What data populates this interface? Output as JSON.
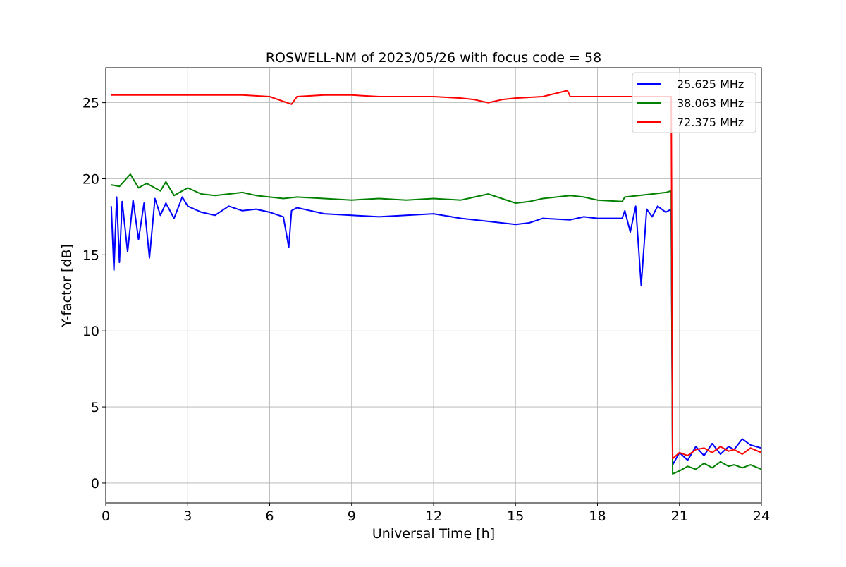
{
  "chart_data": {
    "type": "line",
    "title": "ROSWELL-NM of 2023/05/26 with focus code = 58",
    "xlabel": "Universal Time [h]",
    "ylabel": "Y-factor [dB]",
    "xlim": [
      0,
      24
    ],
    "ylim": [
      -1.3,
      27.3
    ],
    "xticks": [
      0,
      3,
      6,
      9,
      12,
      15,
      18,
      21,
      24
    ],
    "xtick_labels": [
      "0",
      "3",
      "6",
      "9",
      "12",
      "15",
      "18",
      "21",
      "24"
    ],
    "yticks": [
      0,
      5,
      10,
      15,
      20,
      25
    ],
    "ytick_labels": [
      "0",
      "5",
      "10",
      "15",
      "20",
      "25"
    ],
    "grid": true,
    "legend_position": "top-right",
    "series": [
      {
        "name": "25.625 MHz",
        "color": "#0000ff",
        "x": [
          0.2,
          0.3,
          0.4,
          0.5,
          0.6,
          0.8,
          1.0,
          1.2,
          1.4,
          1.6,
          1.8,
          2.0,
          2.2,
          2.5,
          2.8,
          3.0,
          3.5,
          4.0,
          4.5,
          5.0,
          5.5,
          6.0,
          6.5,
          6.7,
          6.8,
          7.0,
          7.5,
          8.0,
          9.0,
          10.0,
          11.0,
          12.0,
          13.0,
          14.0,
          15.0,
          15.5,
          16.0,
          17.0,
          17.5,
          18.0,
          18.9,
          19.0,
          19.2,
          19.4,
          19.6,
          19.8,
          20.0,
          20.2,
          20.5,
          20.7,
          20.75,
          21.0,
          21.3,
          21.6,
          21.9,
          22.2,
          22.5,
          22.8,
          23.0,
          23.3,
          23.6,
          24.0
        ],
        "values": [
          18.2,
          14.0,
          18.8,
          14.5,
          18.5,
          15.2,
          18.6,
          16.0,
          18.4,
          14.8,
          18.7,
          17.6,
          18.4,
          17.4,
          18.8,
          18.2,
          17.8,
          17.6,
          18.2,
          17.9,
          18.0,
          17.8,
          17.5,
          15.5,
          17.9,
          18.1,
          17.9,
          17.7,
          17.6,
          17.5,
          17.6,
          17.7,
          17.4,
          17.2,
          17.0,
          17.1,
          17.4,
          17.3,
          17.5,
          17.4,
          17.4,
          17.9,
          16.5,
          18.2,
          13.0,
          18.0,
          17.5,
          18.2,
          17.8,
          18.0,
          1.2,
          2.0,
          1.5,
          2.4,
          1.8,
          2.6,
          1.9,
          2.4,
          2.2,
          2.9,
          2.5,
          2.3
        ]
      },
      {
        "name": "38.063 MHz",
        "color": "#008000",
        "x": [
          0.2,
          0.5,
          0.9,
          1.2,
          1.5,
          2.0,
          2.2,
          2.5,
          3.0,
          3.5,
          4.0,
          4.5,
          5.0,
          5.5,
          6.0,
          6.5,
          7.0,
          8.0,
          9.0,
          10.0,
          11.0,
          12.0,
          13.0,
          13.5,
          14.0,
          14.5,
          15.0,
          15.5,
          16.0,
          16.5,
          17.0,
          17.5,
          18.0,
          18.9,
          19.0,
          19.5,
          20.0,
          20.5,
          20.7,
          20.75,
          21.0,
          21.3,
          21.6,
          21.9,
          22.2,
          22.5,
          22.8,
          23.0,
          23.3,
          23.6,
          24.0
        ],
        "values": [
          19.6,
          19.5,
          20.3,
          19.4,
          19.7,
          19.2,
          19.8,
          18.9,
          19.4,
          19.0,
          18.9,
          19.0,
          19.1,
          18.9,
          18.8,
          18.7,
          18.8,
          18.7,
          18.6,
          18.7,
          18.6,
          18.7,
          18.6,
          18.8,
          19.0,
          18.7,
          18.4,
          18.5,
          18.7,
          18.8,
          18.9,
          18.8,
          18.6,
          18.5,
          18.8,
          18.9,
          19.0,
          19.1,
          19.2,
          0.6,
          0.8,
          1.1,
          0.9,
          1.3,
          1.0,
          1.4,
          1.1,
          1.2,
          1.0,
          1.2,
          0.9
        ]
      },
      {
        "name": "72.375 MHz",
        "color": "#ff0000",
        "x": [
          0.2,
          1.0,
          2.0,
          3.0,
          4.0,
          5.0,
          6.0,
          6.8,
          7.0,
          8.0,
          9.0,
          10.0,
          11.0,
          12.0,
          13.0,
          13.5,
          14.0,
          14.5,
          15.0,
          16.0,
          16.9,
          17.0,
          18.0,
          19.0,
          20.0,
          20.7,
          20.75,
          21.0,
          21.3,
          21.6,
          21.9,
          22.2,
          22.5,
          22.8,
          23.0,
          23.3,
          23.6,
          24.0
        ],
        "values": [
          25.5,
          25.5,
          25.5,
          25.5,
          25.5,
          25.5,
          25.4,
          24.9,
          25.4,
          25.5,
          25.5,
          25.4,
          25.4,
          25.4,
          25.3,
          25.2,
          25.0,
          25.2,
          25.3,
          25.4,
          25.8,
          25.4,
          25.4,
          25.4,
          25.4,
          25.4,
          1.6,
          2.0,
          1.8,
          2.2,
          2.3,
          2.0,
          2.4,
          2.1,
          2.2,
          1.9,
          2.3,
          2.0
        ]
      }
    ]
  }
}
